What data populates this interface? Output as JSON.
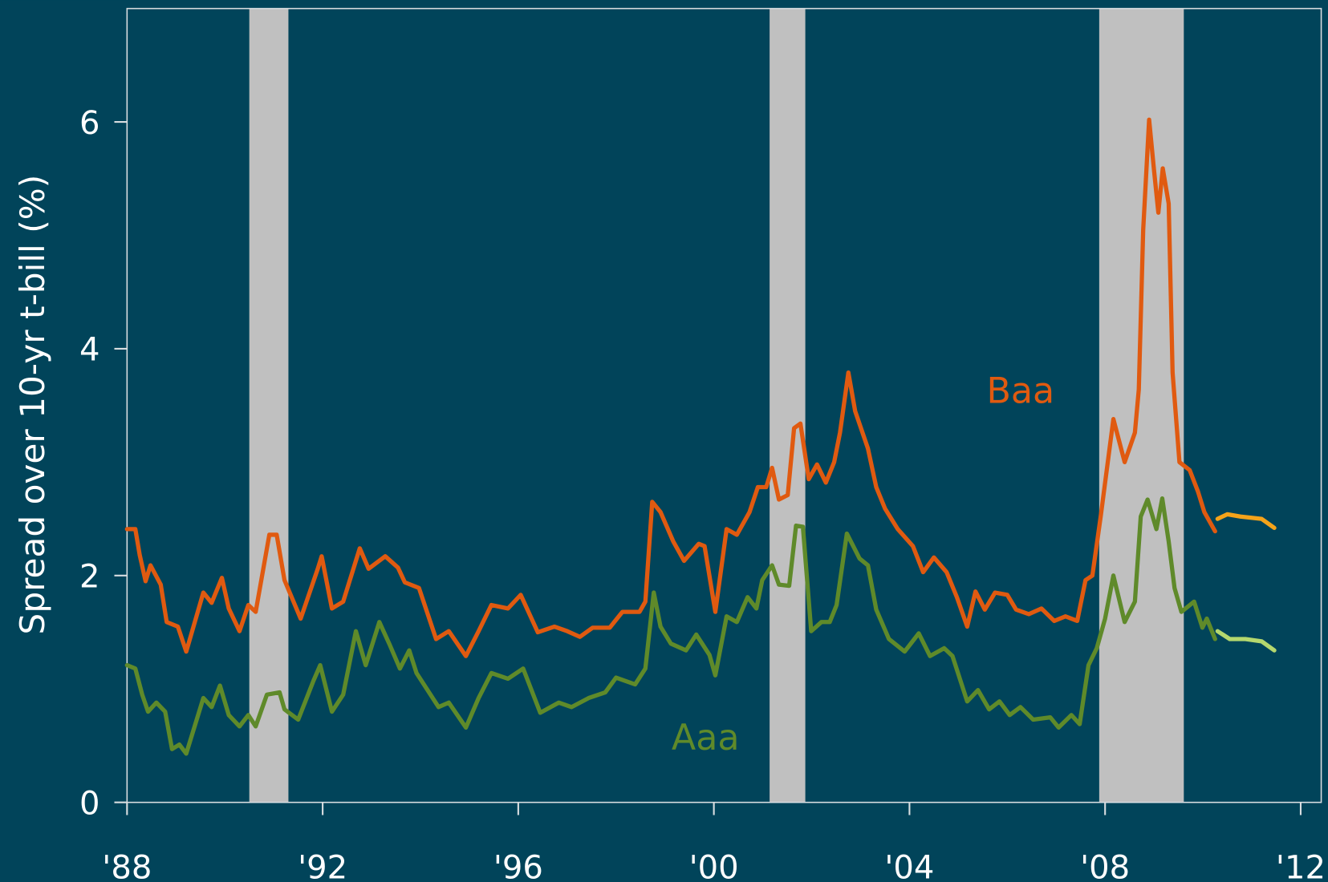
{
  "chart_data": {
    "type": "line",
    "y_label": "Spread over 10-yr t-bill (%)",
    "xlim": [
      1988,
      2012.42
    ],
    "xticks": [
      {
        "value": 1988,
        "label": "'88"
      },
      {
        "value": 1992,
        "label": "'92"
      },
      {
        "value": 1996,
        "label": "'96"
      },
      {
        "value": 2000,
        "label": "'00"
      },
      {
        "value": 2004,
        "label": "'04"
      },
      {
        "value": 2008,
        "label": "'08"
      },
      {
        "value": 2012,
        "label": "'12"
      }
    ],
    "ylim": [
      0,
      7
    ],
    "yticks": [
      0,
      2,
      4,
      6
    ],
    "shaded_ranges": [
      [
        1990.5,
        1991.3
      ],
      [
        2001.14,
        2001.87
      ],
      [
        2007.88,
        2009.61
      ]
    ],
    "shade_color": "#c0c0c0",
    "series": [
      {
        "name": "Baa",
        "color": "#e05a10",
        "x": [
          1988.0,
          1988.17,
          1988.26,
          1988.38,
          1988.48,
          1988.69,
          1988.81,
          1989.04,
          1989.21,
          1989.56,
          1989.73,
          1989.94,
          1990.08,
          1990.3,
          1990.48,
          1990.63,
          1990.91,
          1991.06,
          1991.22,
          1991.55,
          1991.9,
          1991.98,
          1992.19,
          1992.42,
          1992.76,
          1992.94,
          1993.28,
          1993.54,
          1993.68,
          1993.97,
          1994.32,
          1994.58,
          1994.93,
          1995.19,
          1995.45,
          1995.79,
          1996.05,
          1996.4,
          1996.74,
          1997.0,
          1997.26,
          1997.52,
          1997.87,
          1998.13,
          1998.48,
          1998.6,
          1998.74,
          1998.91,
          1999.17,
          1999.39,
          1999.69,
          1999.81,
          2000.03,
          2000.26,
          2000.47,
          2000.73,
          2000.9,
          2001.07,
          2001.19,
          2001.33,
          2001.51,
          2001.64,
          2001.77,
          2001.94,
          2002.11,
          2002.29,
          2002.46,
          2002.58,
          2002.75,
          2002.89,
          2003.15,
          2003.32,
          2003.5,
          2003.76,
          2004.07,
          2004.28,
          2004.5,
          2004.76,
          2004.97,
          2005.18,
          2005.35,
          2005.54,
          2005.75,
          2006.0,
          2006.18,
          2006.44,
          2006.7,
          2006.96,
          2007.19,
          2007.43,
          2007.6,
          2007.74,
          2007.91,
          2008.17,
          2008.4,
          2008.61,
          2008.69,
          2008.78,
          2008.9,
          2009.0,
          2009.09,
          2009.18,
          2009.3,
          2009.38,
          2009.52,
          2009.73,
          2009.9,
          2010.03,
          2010.25
        ],
        "values": [
          2.41,
          2.41,
          2.18,
          1.95,
          2.09,
          1.92,
          1.59,
          1.55,
          1.33,
          1.85,
          1.76,
          1.98,
          1.71,
          1.51,
          1.74,
          1.68,
          2.36,
          2.36,
          1.96,
          1.62,
          2.06,
          2.17,
          1.71,
          1.77,
          2.24,
          2.06,
          2.17,
          2.07,
          1.94,
          1.89,
          1.44,
          1.51,
          1.29,
          1.51,
          1.74,
          1.71,
          1.83,
          1.5,
          1.55,
          1.51,
          1.46,
          1.54,
          1.54,
          1.68,
          1.68,
          1.77,
          2.65,
          2.56,
          2.3,
          2.13,
          2.28,
          2.26,
          1.68,
          2.41,
          2.36,
          2.56,
          2.78,
          2.78,
          2.95,
          2.67,
          2.71,
          3.3,
          3.34,
          2.85,
          2.98,
          2.82,
          3.0,
          3.26,
          3.79,
          3.45,
          3.12,
          2.78,
          2.59,
          2.41,
          2.26,
          2.03,
          2.16,
          2.03,
          1.81,
          1.55,
          1.86,
          1.7,
          1.85,
          1.83,
          1.7,
          1.66,
          1.71,
          1.6,
          1.64,
          1.6,
          1.96,
          2.0,
          2.52,
          3.38,
          3.0,
          3.26,
          3.64,
          5.05,
          6.02,
          5.58,
          5.2,
          5.59,
          5.28,
          3.79,
          3.0,
          2.93,
          2.74,
          2.56,
          2.39
        ]
      },
      {
        "name": "Aaa",
        "color": "#5f8a2a",
        "x": [
          1988.0,
          1988.17,
          1988.31,
          1988.43,
          1988.6,
          1988.78,
          1988.92,
          1989.07,
          1989.21,
          1989.56,
          1989.73,
          1989.9,
          1990.08,
          1990.3,
          1990.48,
          1990.63,
          1990.86,
          1991.12,
          1991.22,
          1991.5,
          1991.81,
          1991.95,
          1992.19,
          1992.42,
          1992.68,
          1992.88,
          1993.16,
          1993.37,
          1993.58,
          1993.77,
          1993.92,
          1994.37,
          1994.58,
          1994.93,
          1995.19,
          1995.45,
          1995.79,
          1996.1,
          1996.45,
          1996.83,
          1997.09,
          1997.44,
          1997.78,
          1998.0,
          1998.39,
          1998.6,
          1998.77,
          1998.91,
          1999.12,
          1999.43,
          1999.64,
          1999.91,
          2000.03,
          2000.26,
          2000.47,
          2000.69,
          2000.87,
          2000.99,
          2001.19,
          2001.33,
          2001.54,
          2001.68,
          2001.82,
          2001.99,
          2002.2,
          2002.37,
          2002.51,
          2002.72,
          2002.98,
          2003.15,
          2003.32,
          2003.58,
          2003.9,
          2004.19,
          2004.42,
          2004.71,
          2004.88,
          2005.18,
          2005.4,
          2005.63,
          2005.84,
          2006.05,
          2006.27,
          2006.53,
          2006.88,
          2007.05,
          2007.31,
          2007.48,
          2007.66,
          2007.83,
          2008.0,
          2008.17,
          2008.4,
          2008.61,
          2008.73,
          2008.87,
          2009.05,
          2009.17,
          2009.3,
          2009.42,
          2009.56,
          2009.82,
          2009.99,
          2010.08,
          2010.25
        ],
        "values": [
          1.21,
          1.18,
          0.95,
          0.8,
          0.88,
          0.8,
          0.47,
          0.51,
          0.43,
          0.92,
          0.84,
          1.03,
          0.77,
          0.67,
          0.77,
          0.67,
          0.95,
          0.97,
          0.82,
          0.73,
          1.07,
          1.21,
          0.8,
          0.95,
          1.51,
          1.21,
          1.59,
          1.39,
          1.18,
          1.34,
          1.14,
          0.84,
          0.88,
          0.66,
          0.92,
          1.14,
          1.09,
          1.18,
          0.79,
          0.88,
          0.84,
          0.92,
          0.97,
          1.1,
          1.04,
          1.18,
          1.85,
          1.55,
          1.4,
          1.34,
          1.48,
          1.3,
          1.12,
          1.64,
          1.59,
          1.81,
          1.71,
          1.96,
          2.09,
          1.92,
          1.91,
          2.44,
          2.43,
          1.51,
          1.59,
          1.59,
          1.74,
          2.37,
          2.15,
          2.09,
          1.7,
          1.44,
          1.33,
          1.49,
          1.29,
          1.36,
          1.29,
          0.89,
          0.99,
          0.82,
          0.89,
          0.77,
          0.84,
          0.73,
          0.75,
          0.66,
          0.77,
          0.69,
          1.21,
          1.36,
          1.62,
          2.0,
          1.59,
          1.77,
          2.52,
          2.67,
          2.41,
          2.68,
          2.3,
          1.89,
          1.68,
          1.77,
          1.54,
          1.62,
          1.44
        ]
      },
      {
        "color": "#f5a31a",
        "x": [
          2010.3,
          2010.5,
          2010.77,
          2011.2,
          2011.46
        ],
        "values": [
          2.5,
          2.54,
          2.52,
          2.5,
          2.42
        ]
      },
      {
        "color": "#b5d86e",
        "x": [
          2010.3,
          2010.55,
          2010.87,
          2011.2,
          2011.46
        ],
        "values": [
          1.51,
          1.44,
          1.44,
          1.42,
          1.34
        ]
      }
    ]
  }
}
